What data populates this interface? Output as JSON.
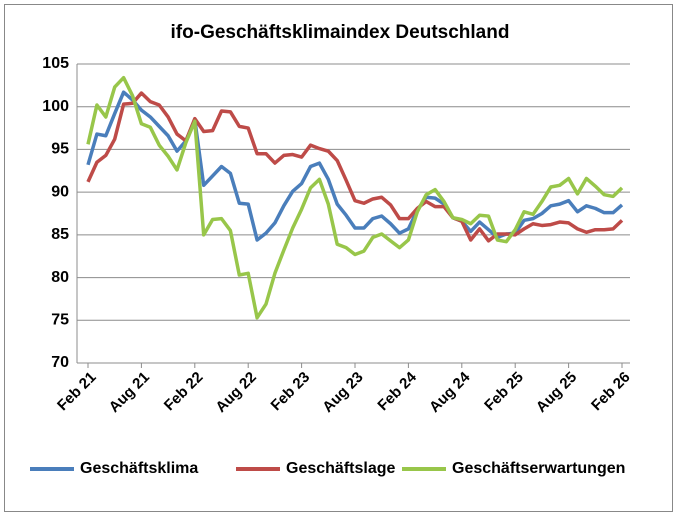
{
  "chart_data": {
    "type": "line",
    "title": "ifo-Geschäftsklimaindex Deutschland",
    "categories": [
      "Feb 21",
      null,
      null,
      null,
      null,
      null,
      "Aug 21",
      null,
      null,
      null,
      null,
      null,
      "Feb 22",
      null,
      null,
      null,
      null,
      null,
      "Aug 22",
      null,
      null,
      null,
      null,
      null,
      "Feb 23",
      null,
      null,
      null,
      null,
      null,
      "Aug 23",
      null,
      null,
      null,
      null,
      null,
      "Feb 24",
      null,
      null,
      null,
      null,
      null,
      "Aug 24",
      null,
      null,
      null,
      null,
      null,
      "Feb 25",
      null,
      null,
      null,
      null,
      null,
      "Aug 25",
      null,
      null,
      null,
      null,
      null,
      "Feb 26"
    ],
    "series": [
      {
        "name": "Geschäftsklima",
        "color": "#4a7ebb",
        "values": [
          93.2,
          96.8,
          96.6,
          99.2,
          101.7,
          100.8,
          99.6,
          98.8,
          97.7,
          96.6,
          94.8,
          96.0,
          98.5,
          90.8,
          91.9,
          93.0,
          92.2,
          88.7,
          88.6,
          84.4,
          85.2,
          86.4,
          88.4,
          90.1,
          91.0,
          93.0,
          93.4,
          91.5,
          88.6,
          87.3,
          85.8,
          85.8,
          86.9,
          87.2,
          86.3,
          85.2,
          85.7,
          87.9,
          89.4,
          89.3,
          88.6,
          87.0,
          86.6,
          85.4,
          86.5,
          85.6,
          84.7,
          85.1,
          85.2,
          86.7,
          86.9,
          87.5,
          88.4,
          88.6,
          89.0,
          87.7,
          88.4,
          88.1,
          87.6,
          87.6,
          88.5
        ]
      },
      {
        "name": "Geschäftslage",
        "color": "#be4b48",
        "values": [
          91.2,
          93.5,
          94.3,
          96.2,
          100.3,
          100.4,
          101.6,
          100.6,
          100.2,
          98.8,
          96.8,
          96.0,
          98.6,
          97.1,
          97.2,
          99.5,
          99.4,
          97.7,
          97.5,
          94.5,
          94.5,
          93.4,
          94.3,
          94.4,
          94.1,
          95.5,
          95.1,
          94.8,
          93.7,
          91.4,
          89.0,
          88.7,
          89.2,
          89.4,
          88.5,
          86.9,
          86.9,
          88.1,
          88.9,
          88.3,
          88.3,
          87.0,
          86.6,
          84.4,
          85.7,
          84.3,
          85.1,
          85.1,
          85.0,
          85.7,
          86.3,
          86.1,
          86.2,
          86.5,
          86.4,
          85.7,
          85.3,
          85.6,
          85.6,
          85.7,
          86.7
        ]
      },
      {
        "name": "Geschäftserwartungen",
        "color": "#98c64a",
        "values": [
          95.6,
          100.2,
          98.8,
          102.3,
          103.4,
          101.3,
          98.0,
          97.6,
          95.5,
          94.2,
          92.6,
          95.8,
          98.3,
          85.0,
          86.8,
          86.9,
          85.5,
          80.3,
          80.5,
          75.3,
          76.9,
          80.5,
          83.2,
          85.8,
          88.0,
          90.5,
          91.5,
          88.6,
          83.9,
          83.5,
          82.7,
          83.1,
          84.7,
          85.1,
          84.3,
          83.5,
          84.4,
          87.7,
          89.7,
          90.3,
          88.9,
          87.0,
          86.8,
          86.3,
          87.3,
          87.2,
          84.4,
          84.2,
          85.6,
          87.7,
          87.4,
          88.9,
          90.6,
          90.8,
          91.6,
          89.8,
          91.6,
          90.7,
          89.7,
          89.5,
          90.5
        ]
      }
    ],
    "ylim": [
      70,
      105
    ],
    "yticks": [
      70,
      75,
      80,
      85,
      90,
      95,
      100,
      105
    ],
    "grid": true,
    "legend": "bottom"
  }
}
